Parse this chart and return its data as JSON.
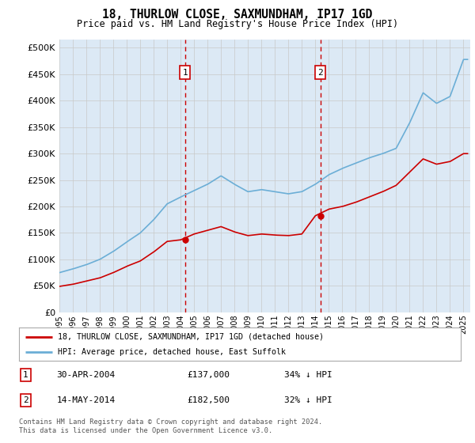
{
  "title": "18, THURLOW CLOSE, SAXMUNDHAM, IP17 1GD",
  "subtitle": "Price paid vs. HM Land Registry's House Price Index (HPI)",
  "background_color": "#dce9f5",
  "plot_bg_color": "#dce9f5",
  "ylabel_ticks": [
    "£0",
    "£50K",
    "£100K",
    "£150K",
    "£200K",
    "£250K",
    "£300K",
    "£350K",
    "£400K",
    "£450K",
    "£500K"
  ],
  "ytick_values": [
    0,
    50000,
    100000,
    150000,
    200000,
    250000,
    300000,
    350000,
    400000,
    450000,
    500000
  ],
  "ylim": [
    0,
    515000
  ],
  "xlim_start": 1995.0,
  "xlim_end": 2025.5,
  "vline1_x": 2004.33,
  "vline2_x": 2014.37,
  "vline1_label": "1",
  "vline2_label": "2",
  "marker1_x": 2004.33,
  "marker1_y": 137000,
  "marker2_x": 2014.37,
  "marker2_y": 182500,
  "hpi_color": "#6baed6",
  "price_color": "#cc0000",
  "vline_color": "#cc0000",
  "legend_line1": "18, THURLOW CLOSE, SAXMUNDHAM, IP17 1GD (detached house)",
  "legend_line2": "HPI: Average price, detached house, East Suffolk",
  "table_row1_num": "1",
  "table_row1_date": "30-APR-2004",
  "table_row1_price": "£137,000",
  "table_row1_hpi": "34% ↓ HPI",
  "table_row2_num": "2",
  "table_row2_date": "14-MAY-2014",
  "table_row2_price": "£182,500",
  "table_row2_hpi": "32% ↓ HPI",
  "footer": "Contains HM Land Registry data © Crown copyright and database right 2024.\nThis data is licensed under the Open Government Licence v3.0.",
  "xtick_years": [
    1995,
    1996,
    1997,
    1998,
    1999,
    2000,
    2001,
    2002,
    2003,
    2004,
    2005,
    2006,
    2007,
    2008,
    2009,
    2010,
    2011,
    2012,
    2013,
    2014,
    2015,
    2016,
    2017,
    2018,
    2019,
    2020,
    2021,
    2022,
    2023,
    2024,
    2025
  ],
  "hpi_years": [
    1995,
    1996,
    1997,
    1998,
    1999,
    2000,
    2001,
    2002,
    2003,
    2004,
    2005,
    2006,
    2007,
    2008,
    2009,
    2010,
    2011,
    2012,
    2013,
    2014,
    2015,
    2016,
    2017,
    2018,
    2019,
    2020,
    2021,
    2022,
    2023,
    2024,
    2025
  ],
  "hpi_values": [
    75000,
    82000,
    90000,
    100000,
    115000,
    133000,
    150000,
    175000,
    205000,
    218000,
    230000,
    242000,
    258000,
    242000,
    228000,
    232000,
    228000,
    224000,
    228000,
    242000,
    260000,
    272000,
    282000,
    292000,
    300000,
    310000,
    358000,
    415000,
    395000,
    408000,
    478000
  ],
  "red_years": [
    1995,
    1996,
    1997,
    1998,
    1999,
    2000,
    2001,
    2002,
    2003,
    2004,
    2005,
    2006,
    2007,
    2008,
    2009,
    2010,
    2011,
    2012,
    2013,
    2014,
    2015,
    2016,
    2017,
    2018,
    2019,
    2020,
    2021,
    2022,
    2023,
    2024,
    2025
  ],
  "red_values": [
    49000,
    53000,
    59000,
    65000,
    75000,
    87000,
    97000,
    114000,
    134000,
    137000,
    148000,
    155000,
    162000,
    152000,
    145000,
    148000,
    146000,
    145000,
    148000,
    182500,
    195000,
    200000,
    208000,
    218000,
    228000,
    240000,
    265000,
    290000,
    280000,
    285000,
    300000
  ]
}
